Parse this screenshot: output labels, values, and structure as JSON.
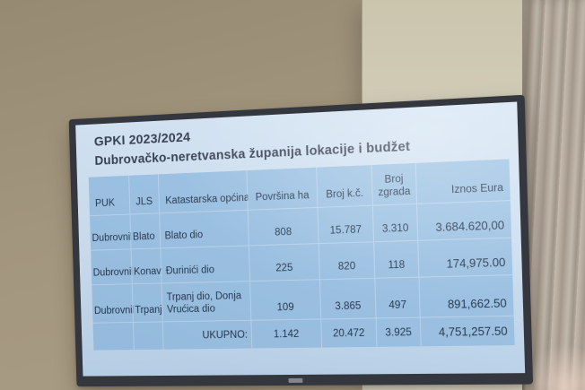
{
  "chart_data": {
    "type": "table",
    "title": "GPKI 2023/2024",
    "subtitle": "Dubrovačko-neretvanska županija lokacije i budžet",
    "columns": [
      "PUK",
      "JLS",
      "Katastarska općina",
      "Površina ha",
      "Broj k.č.",
      "Broj zgrada",
      "Iznos Eura"
    ],
    "rows": [
      [
        "Dubrovnik",
        "Blato",
        "Blato dio",
        "808",
        "15.787",
        "3.310",
        "3.684.620,00"
      ],
      [
        "Dubrovnik",
        "Konavle",
        "Đurinići dio",
        "225",
        "820",
        "118",
        "174,975.00"
      ],
      [
        "Dubrovnik",
        "Trpanj",
        "Trpanj dio, Donja Vrućica dio",
        "109",
        "3.865",
        "497",
        "891,662.50"
      ]
    ],
    "total_row": [
      "",
      "",
      "UKUPNO:",
      "1.142",
      "20.472",
      "3.925",
      "4,751,257.50"
    ]
  },
  "colors": {
    "slide_background": "#cfe1f2",
    "table_cell_blue": "#9cc3e5",
    "slide_text": "#2c3849",
    "tv_bezel": "#34373d",
    "wall_tan": "#a3967e",
    "wall_light": "#d6d1bf",
    "curtain_beige": "#b4a99b"
  }
}
